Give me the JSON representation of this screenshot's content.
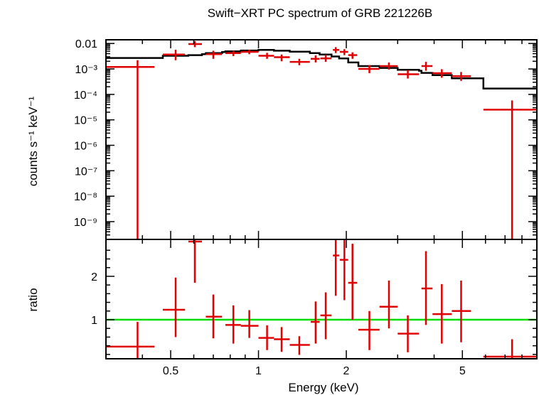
{
  "colors": {
    "data": "#e00000",
    "model": "#000000",
    "unity": "#00dd00",
    "frame": "#000000"
  },
  "chart_data": [
    {
      "type": "scatter",
      "panel": "spectrum",
      "title": "Swift−XRT PC spectrum of GRB 221226B",
      "ylabel": "counts s⁻¹ keV⁻¹",
      "yscale": "log",
      "ylim": [
        2e-10,
        0.014
      ],
      "xscale": "log",
      "xlim": [
        0.3,
        9.0
      ],
      "yticks": [
        {
          "value": 0.01,
          "label": "0.01"
        },
        {
          "value": 0.001,
          "label": "10⁻³"
        },
        {
          "value": 0.0001,
          "label": "10⁻⁴"
        },
        {
          "value": 1e-05,
          "label": "10⁻⁵"
        },
        {
          "value": 1e-06,
          "label": "10⁻⁶"
        },
        {
          "value": 1e-07,
          "label": "10⁻⁷"
        },
        {
          "value": 1e-08,
          "label": "10⁻⁸"
        },
        {
          "value": 1e-09,
          "label": "10⁻⁹"
        }
      ],
      "points": [
        {
          "x": 0.385,
          "xlo": 0.3,
          "xhi": 0.44,
          "y": 0.0012,
          "ylo": 2e-10,
          "yhi": 0.0022
        },
        {
          "x": 0.52,
          "xlo": 0.47,
          "xhi": 0.56,
          "y": 0.0037,
          "ylo": 0.0022,
          "yhi": 0.0057
        },
        {
          "x": 0.605,
          "xlo": 0.575,
          "xhi": 0.64,
          "y": 0.0095,
          "ylo": 0.0072,
          "yhi": 0.0125
        },
        {
          "x": 0.7,
          "xlo": 0.66,
          "xhi": 0.75,
          "y": 0.0038,
          "ylo": 0.0025,
          "yhi": 0.0052
        },
        {
          "x": 0.82,
          "xlo": 0.77,
          "xhi": 0.87,
          "y": 0.0042,
          "ylo": 0.0032,
          "yhi": 0.0052
        },
        {
          "x": 0.93,
          "xlo": 0.87,
          "xhi": 1.0,
          "y": 0.0047,
          "ylo": 0.0038,
          "yhi": 0.0057
        },
        {
          "x": 1.07,
          "xlo": 1.0,
          "xhi": 1.13,
          "y": 0.0033,
          "ylo": 0.0025,
          "yhi": 0.0043
        },
        {
          "x": 1.2,
          "xlo": 1.13,
          "xhi": 1.28,
          "y": 0.0029,
          "ylo": 0.002,
          "yhi": 0.0037
        },
        {
          "x": 1.38,
          "xlo": 1.28,
          "xhi": 1.5,
          "y": 0.0019,
          "ylo": 0.0014,
          "yhi": 0.0025
        },
        {
          "x": 1.57,
          "xlo": 1.51,
          "xhi": 1.62,
          "y": 0.0025,
          "ylo": 0.0018,
          "yhi": 0.0034
        },
        {
          "x": 1.7,
          "xlo": 1.63,
          "xhi": 1.78,
          "y": 0.0026,
          "ylo": 0.0019,
          "yhi": 0.0036
        },
        {
          "x": 1.84,
          "xlo": 1.8,
          "xhi": 1.89,
          "y": 0.0056,
          "ylo": 0.0042,
          "yhi": 0.0072
        },
        {
          "x": 1.97,
          "xlo": 1.9,
          "xhi": 2.03,
          "y": 0.0047,
          "ylo": 0.0035,
          "yhi": 0.006
        },
        {
          "x": 2.1,
          "xlo": 2.03,
          "xhi": 2.18,
          "y": 0.0035,
          "ylo": 0.0025,
          "yhi": 0.0045
        },
        {
          "x": 2.4,
          "xlo": 2.2,
          "xhi": 2.6,
          "y": 0.001,
          "ylo": 0.00068,
          "yhi": 0.0014
        },
        {
          "x": 2.8,
          "xlo": 2.6,
          "xhi": 3.0,
          "y": 0.0013,
          "ylo": 0.00095,
          "yhi": 0.0018
        },
        {
          "x": 3.25,
          "xlo": 3.0,
          "xhi": 3.55,
          "y": 0.00062,
          "ylo": 0.00042,
          "yhi": 0.0009
        },
        {
          "x": 3.75,
          "xlo": 3.62,
          "xhi": 3.95,
          "y": 0.0013,
          "ylo": 0.00085,
          "yhi": 0.0019
        },
        {
          "x": 4.25,
          "xlo": 3.95,
          "xhi": 4.6,
          "y": 0.00068,
          "ylo": 0.00045,
          "yhi": 0.00098
        },
        {
          "x": 4.95,
          "xlo": 4.6,
          "xhi": 5.35,
          "y": 0.00052,
          "ylo": 0.00034,
          "yhi": 0.00076
        },
        {
          "x": 7.4,
          "xlo": 5.9,
          "xhi": 9.0,
          "y": 2.5e-05,
          "ylo": 2e-10,
          "yhi": 5.8e-05
        }
      ],
      "model": {
        "edges": [
          0.3,
          0.44,
          0.47,
          0.56,
          0.575,
          0.64,
          0.66,
          0.75,
          0.77,
          0.87,
          1.0,
          1.13,
          1.28,
          1.5,
          1.62,
          1.78,
          1.89,
          2.03,
          2.2,
          2.6,
          3.0,
          3.55,
          3.62,
          3.95,
          4.6,
          5.35,
          5.9,
          9.0
        ],
        "values": [
          0.0027,
          0.0027,
          0.0033,
          0.0033,
          0.0035,
          0.0038,
          0.0042,
          0.0046,
          0.0049,
          0.0053,
          0.0056,
          0.0052,
          0.0048,
          0.0042,
          0.0037,
          0.0031,
          0.0026,
          0.0018,
          0.0013,
          0.0011,
          0.00092,
          0.00085,
          0.0007,
          0.00057,
          0.00043,
          0.00043,
          0.00017
        ]
      }
    },
    {
      "type": "scatter",
      "panel": "ratio",
      "ylabel": "ratio",
      "xlabel": "Energy (keV)",
      "yscale": "linear",
      "ylim": [
        0.1,
        2.85
      ],
      "xscale": "log",
      "xlim": [
        0.3,
        9.0
      ],
      "yticks": [
        {
          "value": 1,
          "label": "1"
        },
        {
          "value": 2,
          "label": "2"
        }
      ],
      "xticks": [
        {
          "value": 0.5,
          "label": "0.5"
        },
        {
          "value": 1,
          "label": "1"
        },
        {
          "value": 2,
          "label": "2"
        },
        {
          "value": 5,
          "label": "5"
        }
      ],
      "reference": 1,
      "points": [
        {
          "x": 0.385,
          "xlo": 0.3,
          "xhi": 0.44,
          "y": 0.38,
          "ylo": 0.1,
          "yhi": 0.95
        },
        {
          "x": 0.52,
          "xlo": 0.47,
          "xhi": 0.56,
          "y": 1.23,
          "ylo": 0.6,
          "yhi": 1.97
        },
        {
          "x": 0.605,
          "xlo": 0.575,
          "xhi": 0.64,
          "y": 2.8,
          "ylo": 1.85,
          "yhi": 2.85
        },
        {
          "x": 0.7,
          "xlo": 0.66,
          "xhi": 0.75,
          "y": 1.07,
          "ylo": 0.57,
          "yhi": 1.58
        },
        {
          "x": 0.82,
          "xlo": 0.77,
          "xhi": 0.87,
          "y": 0.88,
          "ylo": 0.45,
          "yhi": 1.33
        },
        {
          "x": 0.93,
          "xlo": 0.87,
          "xhi": 1.0,
          "y": 0.86,
          "ylo": 0.58,
          "yhi": 1.22
        },
        {
          "x": 1.07,
          "xlo": 1.0,
          "xhi": 1.13,
          "y": 0.58,
          "ylo": 0.3,
          "yhi": 0.87
        },
        {
          "x": 1.2,
          "xlo": 1.13,
          "xhi": 1.28,
          "y": 0.55,
          "ylo": 0.26,
          "yhi": 0.83
        },
        {
          "x": 1.38,
          "xlo": 1.28,
          "xhi": 1.5,
          "y": 0.42,
          "ylo": 0.19,
          "yhi": 0.62
        },
        {
          "x": 1.57,
          "xlo": 1.51,
          "xhi": 1.62,
          "y": 0.95,
          "ylo": 0.45,
          "yhi": 1.42
        },
        {
          "x": 1.7,
          "xlo": 1.63,
          "xhi": 1.78,
          "y": 1.1,
          "ylo": 0.55,
          "yhi": 1.63
        },
        {
          "x": 1.84,
          "xlo": 1.8,
          "xhi": 1.89,
          "y": 2.48,
          "ylo": 1.55,
          "yhi": 2.85
        },
        {
          "x": 1.97,
          "xlo": 1.9,
          "xhi": 2.03,
          "y": 2.38,
          "ylo": 1.45,
          "yhi": 2.85
        },
        {
          "x": 2.1,
          "xlo": 2.03,
          "xhi": 2.18,
          "y": 1.85,
          "ylo": 1.0,
          "yhi": 2.75
        },
        {
          "x": 2.4,
          "xlo": 2.2,
          "xhi": 2.6,
          "y": 0.77,
          "ylo": 0.3,
          "yhi": 1.2
        },
        {
          "x": 2.8,
          "xlo": 2.6,
          "xhi": 3.0,
          "y": 1.3,
          "ylo": 0.8,
          "yhi": 1.9
        },
        {
          "x": 3.25,
          "xlo": 3.0,
          "xhi": 3.55,
          "y": 0.68,
          "ylo": 0.25,
          "yhi": 1.1
        },
        {
          "x": 3.75,
          "xlo": 3.62,
          "xhi": 3.95,
          "y": 1.72,
          "ylo": 0.88,
          "yhi": 2.58
        },
        {
          "x": 4.25,
          "xlo": 3.95,
          "xhi": 4.6,
          "y": 1.13,
          "ylo": 0.45,
          "yhi": 1.82
        },
        {
          "x": 4.95,
          "xlo": 4.6,
          "xhi": 5.35,
          "y": 1.2,
          "ylo": 0.48,
          "yhi": 1.9
        },
        {
          "x": 7.4,
          "xlo": 5.9,
          "xhi": 9.0,
          "y": 0.15,
          "ylo": 0.1,
          "yhi": 0.55
        }
      ]
    }
  ]
}
